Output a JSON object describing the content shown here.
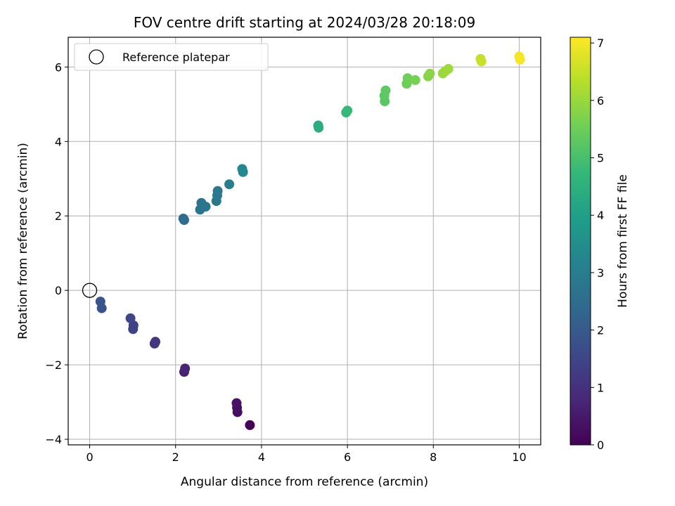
{
  "chart_data": {
    "type": "scatter",
    "title": "FOV centre drift starting at 2024/03/28 20:18:09",
    "xlabel": "Angular distance from reference (arcmin)",
    "ylabel": "Rotation from reference (arcmin)",
    "xlim": [
      -0.5,
      10.5
    ],
    "ylim": [
      -4.15,
      6.8
    ],
    "xticks": [
      0,
      2,
      4,
      6,
      8,
      10
    ],
    "yticks": [
      -4,
      -2,
      0,
      2,
      4,
      6
    ],
    "ytick_labels": [
      "−4",
      "−2",
      "0",
      "2",
      "4",
      "6"
    ],
    "grid": true,
    "legend": {
      "placement": "top-left",
      "entries": [
        "Reference platepar"
      ]
    },
    "reference_point": {
      "x": 0,
      "y": 0
    },
    "colorbar": {
      "label": "Hours from first FF file",
      "range": [
        0,
        7.1
      ],
      "ticks": [
        0,
        1,
        2,
        3,
        4,
        5,
        6,
        7
      ],
      "colormap": "viridis"
    },
    "series": [
      {
        "points": [
          {
            "x": 3.73,
            "y": -3.62,
            "t": 0.05
          },
          {
            "x": 3.44,
            "y": -3.27,
            "t": 0.25
          },
          {
            "x": 3.43,
            "y": -3.15,
            "t": 0.3
          },
          {
            "x": 3.42,
            "y": -3.03,
            "t": 0.35
          },
          {
            "x": 2.2,
            "y": -2.19,
            "t": 0.65
          },
          {
            "x": 2.22,
            "y": -2.1,
            "t": 0.7
          },
          {
            "x": 1.53,
            "y": -1.38,
            "t": 1.1
          },
          {
            "x": 1.51,
            "y": -1.43,
            "t": 1.12
          },
          {
            "x": 1.02,
            "y": -0.94,
            "t": 1.4
          },
          {
            "x": 1.01,
            "y": -1.04,
            "t": 1.42
          },
          {
            "x": 0.95,
            "y": -0.75,
            "t": 1.5
          },
          {
            "x": 0.28,
            "y": -0.48,
            "t": 1.85
          },
          {
            "x": 0.25,
            "y": -0.3,
            "t": 1.9
          },
          {
            "x": 2.18,
            "y": 1.93,
            "t": 2.5
          },
          {
            "x": 2.2,
            "y": 1.89,
            "t": 2.52
          },
          {
            "x": 2.57,
            "y": 2.17,
            "t": 2.7
          },
          {
            "x": 2.6,
            "y": 2.35,
            "t": 2.72
          },
          {
            "x": 2.7,
            "y": 2.25,
            "t": 2.75
          },
          {
            "x": 2.95,
            "y": 2.4,
            "t": 2.85
          },
          {
            "x": 2.97,
            "y": 2.55,
            "t": 2.87
          },
          {
            "x": 2.98,
            "y": 2.67,
            "t": 2.88
          },
          {
            "x": 3.25,
            "y": 2.85,
            "t": 3.05
          },
          {
            "x": 3.55,
            "y": 3.26,
            "t": 3.3
          },
          {
            "x": 3.57,
            "y": 3.18,
            "t": 3.32
          },
          {
            "x": 5.32,
            "y": 4.43,
            "t": 4.4
          },
          {
            "x": 5.33,
            "y": 4.37,
            "t": 4.42
          },
          {
            "x": 5.97,
            "y": 4.78,
            "t": 4.75
          },
          {
            "x": 6.0,
            "y": 4.83,
            "t": 4.78
          },
          {
            "x": 6.87,
            "y": 5.08,
            "t": 5.25
          },
          {
            "x": 6.86,
            "y": 5.23,
            "t": 5.27
          },
          {
            "x": 6.89,
            "y": 5.37,
            "t": 5.3
          },
          {
            "x": 7.38,
            "y": 5.55,
            "t": 5.5
          },
          {
            "x": 7.4,
            "y": 5.7,
            "t": 5.52
          },
          {
            "x": 7.58,
            "y": 5.65,
            "t": 5.6
          },
          {
            "x": 7.88,
            "y": 5.75,
            "t": 5.8
          },
          {
            "x": 7.92,
            "y": 5.82,
            "t": 5.82
          },
          {
            "x": 8.22,
            "y": 5.83,
            "t": 6.0
          },
          {
            "x": 8.27,
            "y": 5.88,
            "t": 6.02
          },
          {
            "x": 8.35,
            "y": 5.95,
            "t": 6.05
          },
          {
            "x": 9.1,
            "y": 6.22,
            "t": 6.5
          },
          {
            "x": 9.12,
            "y": 6.15,
            "t": 6.52
          },
          {
            "x": 10.0,
            "y": 6.28,
            "t": 7.0
          },
          {
            "x": 10.02,
            "y": 6.2,
            "t": 7.02
          }
        ]
      }
    ]
  }
}
